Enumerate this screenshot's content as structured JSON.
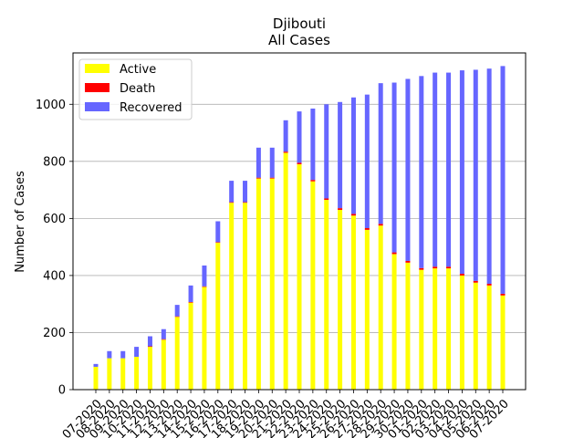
{
  "chart_data": {
    "type": "bar",
    "stacked": true,
    "title": "Djibouti",
    "subtitle": "All Cases",
    "xlabel": "",
    "ylabel": "Number of Cases",
    "ylim": [
      0,
      1180
    ],
    "yticks": [
      0,
      200,
      400,
      600,
      800,
      1000
    ],
    "grid": "horizontal",
    "legend": "top-left",
    "categories": [
      "07-2020",
      "08-2020",
      "09-2020",
      "10-2020",
      "11-2020",
      "12-2020",
      "13-2020",
      "14-2020",
      "15-2020",
      "16-2020",
      "17-2020",
      "18-2020",
      "19-2020",
      "20-2020",
      "21-2020",
      "22-2020",
      "23-2020",
      "24-2020",
      "25-2020",
      "26-2020",
      "27-2020",
      "28-2020",
      "29-2020",
      "30-2020",
      "01-2020",
      "02-2020",
      "03-2020",
      "04-2020",
      "05-2020",
      "06-2020",
      "07-2020"
    ],
    "series": [
      {
        "name": "Active",
        "color": "#ffff00",
        "values": [
          80,
          110,
          110,
          115,
          150,
          175,
          255,
          305,
          360,
          515,
          655,
          655,
          740,
          740,
          830,
          790,
          730,
          665,
          630,
          610,
          560,
          575,
          475,
          445,
          420,
          425,
          425,
          400,
          375,
          365,
          330
        ]
      },
      {
        "name": "Death",
        "color": "#ff0000",
        "values": [
          0,
          0,
          0,
          0,
          2,
          2,
          2,
          2,
          2,
          2,
          2,
          2,
          3,
          3,
          4,
          5,
          5,
          5,
          6,
          6,
          6,
          6,
          6,
          6,
          6,
          6,
          6,
          6,
          6,
          6,
          6
        ]
      },
      {
        "name": "Recovered",
        "color": "#6666ff",
        "values": [
          10,
          25,
          25,
          35,
          35,
          35,
          40,
          58,
          73,
          73,
          75,
          75,
          105,
          105,
          110,
          180,
          250,
          330,
          372,
          408,
          468,
          493,
          595,
          638,
          673,
          680,
          680,
          713,
          740,
          754,
          798
        ]
      }
    ]
  }
}
